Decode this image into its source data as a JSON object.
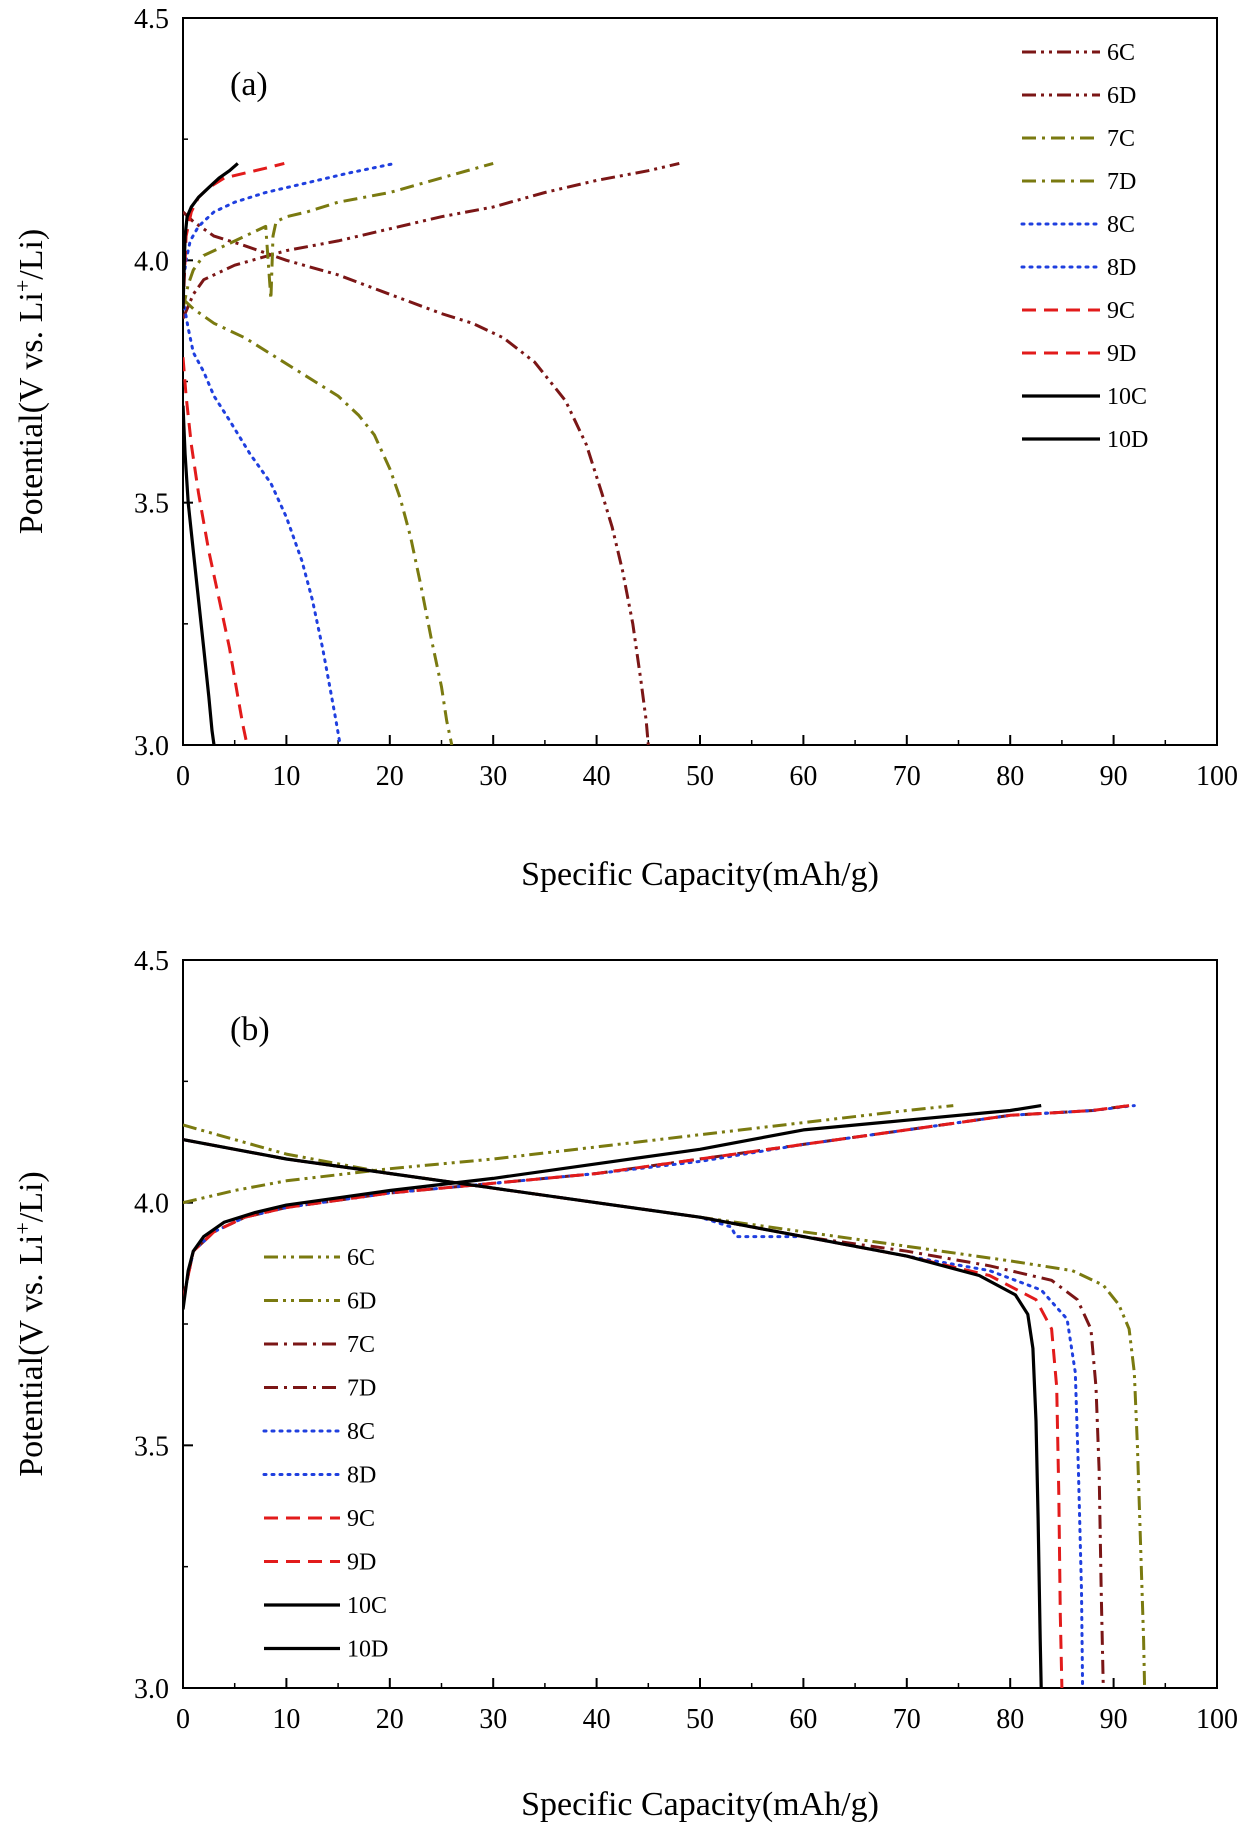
{
  "chart_data": [
    {
      "type": "line",
      "panel_label": "(a)",
      "xlabel": "Specific Capacity(mAh/g)",
      "ylabel": {
        "prefix": "Potential(V vs. Li",
        "superscript": "+",
        "suffix": "/Li)"
      },
      "xlim": [
        0,
        100
      ],
      "ylim": [
        3.0,
        4.5
      ],
      "x_ticks": [
        "0",
        "10",
        "20",
        "30",
        "40",
        "50",
        "60",
        "70",
        "80",
        "90",
        "100"
      ],
      "y_ticks": [
        "3.0",
        "3.5",
        "4.0",
        "4.5"
      ],
      "grid": false,
      "legend_position": "top-right",
      "series": [
        {
          "name": "6C",
          "color": "#7b1616",
          "style": "dashdotdot",
          "x": [
            0,
            1,
            2,
            5,
            10,
            15,
            20,
            25,
            30,
            35,
            40,
            45,
            48
          ],
          "y": [
            3.88,
            3.93,
            3.96,
            3.99,
            4.02,
            4.04,
            4.065,
            4.09,
            4.11,
            4.14,
            4.165,
            4.185,
            4.2
          ]
        },
        {
          "name": "6D",
          "color": "#7b1616",
          "style": "dashdotdot",
          "x": [
            0,
            1,
            3,
            6,
            10,
            15,
            20,
            25,
            28,
            31,
            34,
            37,
            39,
            40.5,
            41.5,
            42.5,
            43.5,
            44.3,
            44.8,
            45
          ],
          "y": [
            4.1,
            4.08,
            4.05,
            4.03,
            4.0,
            3.97,
            3.93,
            3.89,
            3.87,
            3.84,
            3.79,
            3.71,
            3.62,
            3.52,
            3.45,
            3.36,
            3.25,
            3.13,
            3.05,
            3.0
          ]
        },
        {
          "name": "7C",
          "color": "#7a7a10",
          "style": "dashdot",
          "x": [
            0,
            0.5,
            1,
            2,
            4,
            6,
            8,
            8.5,
            8.7,
            9,
            10,
            12,
            15,
            20,
            25,
            30
          ],
          "y": [
            3.9,
            3.95,
            3.98,
            4.01,
            4.03,
            4.05,
            4.07,
            3.92,
            4.05,
            4.08,
            4.09,
            4.1,
            4.12,
            4.14,
            4.17,
            4.2
          ]
        },
        {
          "name": "7D",
          "color": "#7a7a10",
          "style": "dashdot",
          "x": [
            0,
            1,
            3,
            6,
            9,
            12,
            15,
            17,
            18.5,
            20,
            21,
            22,
            23,
            24,
            25,
            25.5,
            26
          ],
          "y": [
            3.92,
            3.9,
            3.87,
            3.84,
            3.8,
            3.76,
            3.72,
            3.68,
            3.64,
            3.57,
            3.51,
            3.43,
            3.33,
            3.22,
            3.12,
            3.05,
            3.0
          ]
        },
        {
          "name": "8C",
          "color": "#1f3fdf",
          "style": "dot",
          "x": [
            0,
            0.3,
            0.7,
            1.5,
            3,
            5,
            8,
            12,
            16,
            20.5
          ],
          "y": [
            3.95,
            4.0,
            4.04,
            4.07,
            4.1,
            4.12,
            4.14,
            4.16,
            4.18,
            4.2
          ]
        },
        {
          "name": "8D",
          "color": "#1f3fdf",
          "style": "dot",
          "x": [
            0,
            0.5,
            1,
            2,
            3,
            4.5,
            6.5,
            8.5,
            10,
            11.5,
            12.5,
            13.5,
            14.2,
            14.8,
            15.2
          ],
          "y": [
            3.92,
            3.86,
            3.81,
            3.77,
            3.72,
            3.67,
            3.6,
            3.54,
            3.47,
            3.38,
            3.3,
            3.2,
            3.12,
            3.05,
            3.0
          ]
        },
        {
          "name": "9C",
          "color": "#e21b1b",
          "style": "dash",
          "x": [
            0,
            0.3,
            0.8,
            1.5,
            2.5,
            4,
            6,
            8,
            9.8
          ],
          "y": [
            3.9,
            4.05,
            4.1,
            4.13,
            4.15,
            4.17,
            4.18,
            4.19,
            4.2
          ]
        },
        {
          "name": "9D",
          "color": "#e21b1b",
          "style": "dash",
          "x": [
            0,
            0.3,
            0.8,
            1.5,
            2.5,
            3.5,
            4.5,
            5.3,
            5.8,
            6.2
          ],
          "y": [
            3.8,
            3.72,
            3.62,
            3.52,
            3.4,
            3.3,
            3.2,
            3.1,
            3.04,
            3.0
          ]
        },
        {
          "name": "10C",
          "color": "#000000",
          "style": "solid",
          "x": [
            0,
            0.2,
            0.4,
            0.8,
            1.5,
            2.5,
            3.5,
            4.5,
            5.3
          ],
          "y": [
            3.9,
            4.05,
            4.09,
            4.11,
            4.13,
            4.15,
            4.17,
            4.185,
            4.2
          ]
        },
        {
          "name": "10D",
          "color": "#000000",
          "style": "solid",
          "x": [
            0,
            0.2,
            0.5,
            1,
            1.5,
            2,
            2.5,
            2.8,
            3
          ],
          "y": [
            3.7,
            3.6,
            3.5,
            3.4,
            3.3,
            3.2,
            3.1,
            3.03,
            3.0
          ]
        }
      ]
    },
    {
      "type": "line",
      "panel_label": "(b)",
      "xlabel": "Specific Capacity(mAh/g)",
      "ylabel": {
        "prefix": "Potential(V vs. Li",
        "superscript": "+",
        "suffix": "/Li)"
      },
      "xlim": [
        0,
        100
      ],
      "ylim": [
        3.0,
        4.5
      ],
      "x_ticks": [
        "0",
        "10",
        "20",
        "30",
        "40",
        "50",
        "60",
        "70",
        "80",
        "90",
        "100"
      ],
      "y_ticks": [
        "3.0",
        "3.5",
        "4.0",
        "4.5"
      ],
      "grid": false,
      "legend_position": "lower-left",
      "series": [
        {
          "name": "6C",
          "color": "#7a7a10",
          "style": "dashdotdot",
          "x": [
            0,
            5,
            10,
            20,
            30,
            40,
            50,
            60,
            70,
            74.5
          ],
          "y": [
            4.0,
            4.025,
            4.045,
            4.07,
            4.09,
            4.115,
            4.14,
            4.165,
            4.19,
            4.2
          ]
        },
        {
          "name": "6D",
          "color": "#7a7a10",
          "style": "dashdotdot",
          "x": [
            0,
            5,
            10,
            20,
            30,
            40,
            50,
            60,
            70,
            80,
            86,
            89,
            90.5,
            91.5,
            92,
            92.3,
            92.6,
            92.9,
            93
          ],
          "y": [
            4.16,
            4.13,
            4.1,
            4.06,
            4.03,
            4.0,
            3.97,
            3.94,
            3.91,
            3.88,
            3.86,
            3.83,
            3.79,
            3.74,
            3.65,
            3.5,
            3.3,
            3.1,
            3.0
          ]
        },
        {
          "name": "7C",
          "color": "#7b1616",
          "style": "dashdot",
          "x": [
            0,
            1,
            3,
            6,
            10,
            20,
            30,
            40,
            50,
            60,
            70,
            80,
            88,
            91.5
          ],
          "y": [
            3.8,
            3.9,
            3.94,
            3.97,
            3.99,
            4.02,
            4.04,
            4.06,
            4.09,
            4.12,
            4.15,
            4.18,
            4.19,
            4.2
          ]
        },
        {
          "name": "7D",
          "color": "#7b1616",
          "style": "dashdot",
          "x": [
            0,
            5,
            10,
            20,
            30,
            40,
            50,
            60,
            70,
            78,
            84,
            86.5,
            87.8,
            88.3,
            88.6,
            88.8,
            89
          ],
          "y": [
            4.13,
            4.11,
            4.09,
            4.06,
            4.03,
            4.0,
            3.97,
            3.93,
            3.9,
            3.87,
            3.84,
            3.8,
            3.74,
            3.62,
            3.45,
            3.2,
            3.0
          ]
        },
        {
          "name": "8C",
          "color": "#1f3fdf",
          "style": "dot",
          "x": [
            0,
            1,
            3,
            6,
            10,
            20,
            30,
            40,
            50,
            60,
            70,
            80,
            88,
            92
          ],
          "y": [
            3.8,
            3.9,
            3.94,
            3.97,
            3.99,
            4.02,
            4.04,
            4.06,
            4.085,
            4.12,
            4.15,
            4.18,
            4.19,
            4.2
          ]
        },
        {
          "name": "8D",
          "color": "#1f3fdf",
          "style": "dot",
          "x": [
            0,
            5,
            10,
            20,
            30,
            40,
            50,
            53,
            53.5,
            60,
            70,
            78,
            83,
            85.5,
            86.3,
            86.6,
            86.9,
            87
          ],
          "y": [
            4.13,
            4.11,
            4.09,
            4.06,
            4.03,
            4.0,
            3.97,
            3.95,
            3.93,
            3.93,
            3.89,
            3.86,
            3.82,
            3.76,
            3.65,
            3.45,
            3.2,
            3.0
          ]
        },
        {
          "name": "9C",
          "color": "#e21b1b",
          "style": "dash",
          "x": [
            0,
            1,
            3,
            6,
            10,
            20,
            30,
            40,
            50,
            60,
            70,
            80,
            88,
            91.5
          ],
          "y": [
            3.8,
            3.9,
            3.94,
            3.97,
            3.99,
            4.02,
            4.04,
            4.06,
            4.09,
            4.12,
            4.15,
            4.18,
            4.19,
            4.2
          ]
        },
        {
          "name": "9D",
          "color": "#e21b1b",
          "style": "dash",
          "x": [
            0,
            5,
            10,
            20,
            30,
            40,
            50,
            60,
            70,
            78,
            82.5,
            84,
            84.5,
            84.7,
            84.85,
            85
          ],
          "y": [
            4.13,
            4.11,
            4.09,
            4.06,
            4.03,
            4.0,
            3.97,
            3.93,
            3.89,
            3.85,
            3.8,
            3.74,
            3.62,
            3.4,
            3.15,
            3.0
          ]
        },
        {
          "name": "10C",
          "color": "#000000",
          "style": "solid",
          "x": [
            0,
            0.5,
            1,
            2,
            4,
            7,
            10,
            15,
            20,
            30,
            40,
            50,
            60,
            70,
            80,
            83
          ],
          "y": [
            3.78,
            3.86,
            3.9,
            3.93,
            3.96,
            3.98,
            3.995,
            4.01,
            4.025,
            4.05,
            4.08,
            4.11,
            4.15,
            4.17,
            4.19,
            4.2
          ]
        },
        {
          "name": "10D",
          "color": "#000000",
          "style": "solid",
          "x": [
            0,
            5,
            10,
            20,
            30,
            40,
            50,
            60,
            70,
            77,
            80.5,
            81.7,
            82.2,
            82.5,
            82.7,
            82.9,
            83
          ],
          "y": [
            4.13,
            4.11,
            4.09,
            4.06,
            4.03,
            4.0,
            3.97,
            3.93,
            3.89,
            3.85,
            3.81,
            3.77,
            3.7,
            3.55,
            3.35,
            3.1,
            3.0
          ]
        }
      ]
    }
  ]
}
